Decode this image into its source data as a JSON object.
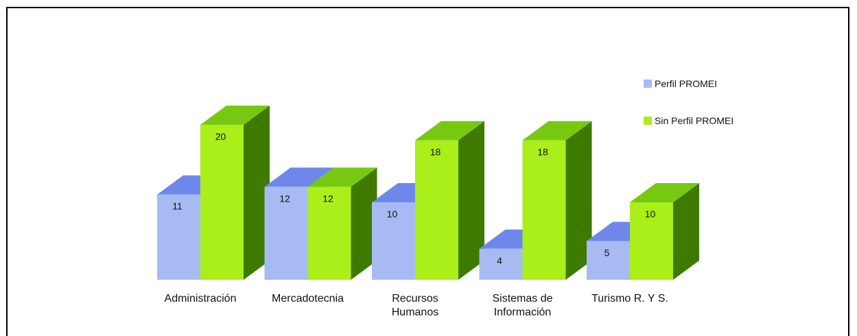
{
  "chart_data": {
    "type": "bar",
    "style": "3d-clustered-column",
    "categories": [
      "Administración",
      "Mercadotecnia",
      "Recursos\nHumanos",
      "Sistemas de\nInformación",
      "Turismo R. Y S."
    ],
    "series": [
      {
        "name": "Perfil PROMEI",
        "color": "#a7bbf2",
        "top_color": "#6f87ea",
        "side_color": "#6f87ea",
        "values": [
          11,
          12,
          10,
          4,
          5
        ]
      },
      {
        "name": "Sin Perfil PROMEI",
        "color": "#aaee1a",
        "top_color": "#77c811",
        "side_color": "#3f7a00",
        "values": [
          20,
          12,
          18,
          18,
          10
        ]
      }
    ],
    "title": "",
    "xlabel": "",
    "ylabel": "",
    "ylim": [
      0,
      20
    ],
    "grid": false,
    "legend": "right"
  }
}
